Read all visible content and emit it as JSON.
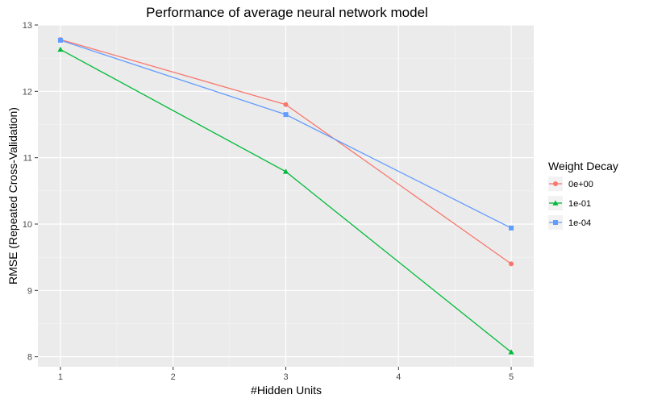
{
  "chart_data": {
    "type": "line",
    "title": "Performance of average neural network model",
    "xlabel": "#Hidden Units",
    "ylabel": "RMSE (Repeated Cross-Validation)",
    "xlim": [
      0.8,
      5.2
    ],
    "ylim": [
      7.85,
      13.0
    ],
    "x_ticks": [
      1,
      2,
      3,
      4,
      5
    ],
    "y_ticks": [
      8,
      9,
      10,
      11,
      12,
      13
    ],
    "grid": true,
    "legend": {
      "title": "Weight Decay",
      "position": "right"
    },
    "series": [
      {
        "name": "0e+00",
        "color": "#F8766D",
        "marker": "circle",
        "x": [
          1,
          3,
          5
        ],
        "y": [
          12.78,
          11.8,
          9.4
        ]
      },
      {
        "name": "1e-01",
        "color": "#00BA38",
        "marker": "triangle",
        "x": [
          1,
          3,
          5
        ],
        "y": [
          12.63,
          10.79,
          8.07
        ]
      },
      {
        "name": "1e-04",
        "color": "#619CFF",
        "marker": "square",
        "x": [
          1,
          3,
          5
        ],
        "y": [
          12.77,
          11.65,
          9.94
        ]
      }
    ]
  }
}
